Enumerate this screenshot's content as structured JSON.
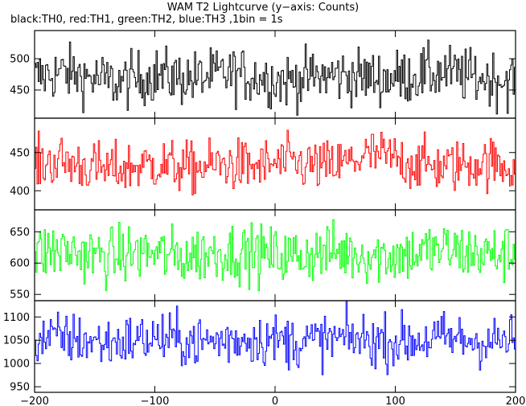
{
  "title": "WAM T2 Lightcurve (y−axis: Counts)",
  "subtitle": "black:TH0, red:TH1, green:TH2, blue:TH3 ,1bin = 1s",
  "chart_data": {
    "type": "line",
    "xlim": [
      -200,
      200
    ],
    "xticks": [
      -200,
      -100,
      0,
      100,
      200
    ],
    "xtick_labels": [
      "−200",
      "−100",
      "0",
      "100",
      "200"
    ],
    "grid": false,
    "panels": [
      {
        "name": "TH0",
        "color": "#000000",
        "ylim": [
          405,
          545
        ],
        "yticks": [
          450,
          500
        ],
        "mean": 470,
        "noise": 22,
        "pattern": [
          0,
          4,
          8,
          6,
          2,
          -2,
          -6,
          -8,
          -4,
          0,
          4,
          2,
          0,
          -2,
          0,
          3,
          6,
          4,
          2,
          0,
          -3,
          -5,
          -2,
          0,
          2,
          4,
          3,
          1,
          0,
          -1,
          0,
          2,
          4,
          6,
          8,
          5,
          2,
          0,
          -2,
          -4,
          -2
        ]
      },
      {
        "name": "TH1",
        "color": "#ff0000",
        "ylim": [
          375,
          495
        ],
        "yticks": [
          400,
          450
        ],
        "mean": 433,
        "noise": 17,
        "pattern": [
          0,
          4,
          6,
          3,
          0,
          -3,
          -6,
          -4,
          -2,
          0,
          2,
          0,
          -2,
          -4,
          -2,
          0,
          2,
          0,
          -2,
          0,
          2,
          4,
          2,
          0,
          -2,
          0,
          4,
          10,
          14,
          12,
          8,
          4,
          2,
          0,
          -2,
          0,
          2,
          4,
          2,
          0,
          -2
        ]
      },
      {
        "name": "TH2",
        "color": "#00ff00",
        "ylim": [
          540,
          685
        ],
        "yticks": [
          550,
          600,
          650
        ],
        "mean": 615,
        "noise": 23,
        "pattern": [
          0,
          3,
          5,
          3,
          0,
          -3,
          -5,
          -3,
          0,
          2,
          0,
          -3,
          -5,
          -3,
          0,
          2,
          4,
          2,
          0,
          -2,
          -3,
          -4,
          -2,
          0,
          2,
          3,
          2,
          0,
          -2,
          -3,
          -2,
          0,
          2,
          4,
          6,
          4,
          2,
          0,
          -2,
          0,
          2
        ]
      },
      {
        "name": "TH3",
        "color": "#0000ff",
        "ylim": [
          938,
          1135
        ],
        "yticks": [
          950,
          1000,
          1050,
          1100
        ],
        "mean": 1050,
        "noise": 28,
        "pattern": [
          0,
          4,
          6,
          4,
          0,
          -4,
          -6,
          -3,
          0,
          3,
          4,
          2,
          0,
          -2,
          -4,
          -2,
          0,
          2,
          4,
          2,
          0,
          -2,
          -4,
          -2,
          0,
          2,
          4,
          3,
          0,
          -2,
          -3,
          -2,
          0,
          2,
          4,
          2,
          0,
          -2,
          -3,
          -2,
          0
        ]
      }
    ]
  }
}
